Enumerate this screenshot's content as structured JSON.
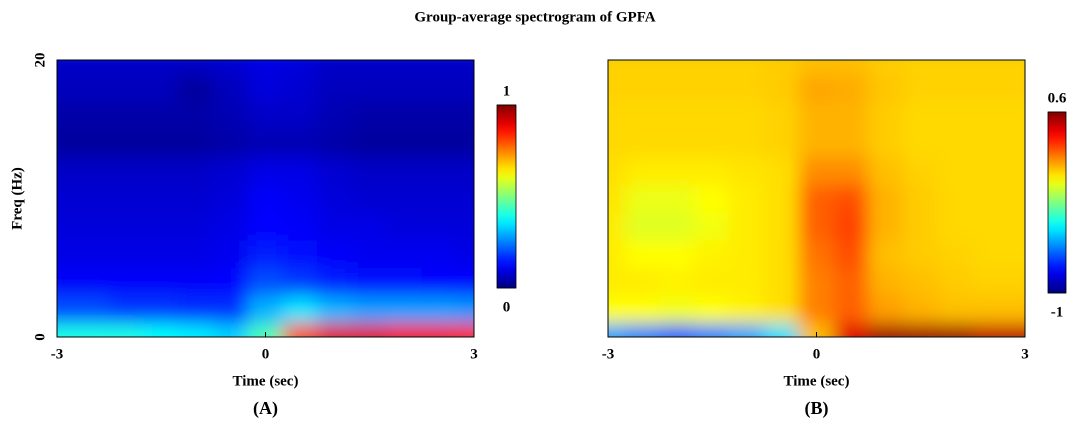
{
  "title": "Group-average spectrogram of GPFA",
  "chart_data": [
    {
      "type": "heatmap",
      "panel_label": "(A)",
      "xlabel": "Time (sec)",
      "ylabel": "Freq (Hz)",
      "x": [
        -3,
        -2.5,
        -2,
        -1.5,
        -1,
        -0.5,
        0,
        0.5,
        1,
        1.5,
        2,
        2.5,
        3
      ],
      "y": [
        0,
        2,
        4,
        6,
        8,
        10,
        12,
        14,
        16,
        18,
        20
      ],
      "values": [
        [
          0.4,
          0.4,
          0.4,
          0.38,
          0.36,
          0.33,
          0.45,
          0.8,
          0.9,
          0.9,
          0.88,
          0.88,
          0.85
        ],
        [
          0.2,
          0.2,
          0.18,
          0.18,
          0.17,
          0.17,
          0.3,
          0.35,
          0.3,
          0.28,
          0.28,
          0.28,
          0.27
        ],
        [
          0.12,
          0.12,
          0.12,
          0.12,
          0.12,
          0.13,
          0.2,
          0.18,
          0.15,
          0.14,
          0.14,
          0.13,
          0.13
        ],
        [
          0.1,
          0.1,
          0.1,
          0.1,
          0.1,
          0.11,
          0.15,
          0.14,
          0.12,
          0.11,
          0.11,
          0.11,
          0.1
        ],
        [
          0.09,
          0.09,
          0.09,
          0.09,
          0.09,
          0.1,
          0.13,
          0.12,
          0.1,
          0.1,
          0.09,
          0.09,
          0.09
        ],
        [
          0.08,
          0.08,
          0.08,
          0.08,
          0.08,
          0.09,
          0.12,
          0.11,
          0.09,
          0.08,
          0.08,
          0.08,
          0.08
        ],
        [
          0.07,
          0.07,
          0.07,
          0.07,
          0.07,
          0.08,
          0.1,
          0.1,
          0.08,
          0.07,
          0.07,
          0.07,
          0.07
        ],
        [
          0.03,
          0.03,
          0.03,
          0.03,
          0.03,
          0.04,
          0.05,
          0.05,
          0.04,
          0.03,
          0.03,
          0.03,
          0.03
        ],
        [
          0.04,
          0.04,
          0.04,
          0.04,
          0.04,
          0.05,
          0.07,
          0.07,
          0.05,
          0.04,
          0.04,
          0.04,
          0.04
        ],
        [
          0.06,
          0.06,
          0.06,
          0.06,
          0.03,
          0.06,
          0.09,
          0.08,
          0.06,
          0.06,
          0.06,
          0.06,
          0.06
        ],
        [
          0.07,
          0.07,
          0.07,
          0.07,
          0.07,
          0.08,
          0.1,
          0.09,
          0.07,
          0.07,
          0.07,
          0.07,
          0.07
        ]
      ],
      "xlim": [
        -3,
        3
      ],
      "ylim": [
        0,
        20
      ],
      "xticks": [
        -3,
        0,
        3
      ],
      "yticks": [
        0,
        20
      ],
      "colormap": "jet",
      "clim": [
        0,
        1
      ],
      "cticks": [
        0,
        1
      ]
    },
    {
      "type": "heatmap",
      "panel_label": "(B)",
      "xlabel": "Time (sec)",
      "x": [
        -3,
        -2.5,
        -2,
        -1.5,
        -1,
        -0.5,
        0,
        0.5,
        1,
        1.5,
        2,
        2.5,
        3
      ],
      "y": [
        0,
        2,
        4,
        6,
        8,
        10,
        12,
        14,
        16,
        18,
        20
      ],
      "values": [
        [
          -0.55,
          -0.6,
          -0.65,
          -0.6,
          -0.55,
          -0.45,
          0.1,
          0.45,
          0.55,
          0.55,
          0.55,
          0.5,
          0.5
        ],
        [
          0.0,
          0.0,
          -0.02,
          0.0,
          0.02,
          0.05,
          0.2,
          0.25,
          0.15,
          0.12,
          0.1,
          0.1,
          0.1
        ],
        [
          0.03,
          0.03,
          0.02,
          0.03,
          0.03,
          0.05,
          0.2,
          0.25,
          0.12,
          0.1,
          0.08,
          0.07,
          0.07
        ],
        [
          0.03,
          0.0,
          0.0,
          0.02,
          0.03,
          0.05,
          0.22,
          0.28,
          0.1,
          0.08,
          0.07,
          0.06,
          0.06
        ],
        [
          0.03,
          -0.05,
          -0.05,
          -0.02,
          0.03,
          0.05,
          0.25,
          0.3,
          0.12,
          0.08,
          0.06,
          0.06,
          0.06
        ],
        [
          0.04,
          -0.03,
          -0.03,
          0.0,
          0.03,
          0.05,
          0.25,
          0.28,
          0.12,
          0.08,
          0.06,
          0.06,
          0.06
        ],
        [
          0.05,
          0.03,
          0.03,
          0.03,
          0.04,
          0.05,
          0.18,
          0.18,
          0.1,
          0.07,
          0.06,
          0.06,
          0.06
        ],
        [
          0.06,
          0.06,
          0.06,
          0.06,
          0.06,
          0.07,
          0.12,
          0.12,
          0.08,
          0.06,
          0.06,
          0.06,
          0.06
        ],
        [
          0.06,
          0.06,
          0.06,
          0.06,
          0.06,
          0.07,
          0.12,
          0.12,
          0.08,
          0.06,
          0.06,
          0.06,
          0.06
        ],
        [
          0.07,
          0.07,
          0.07,
          0.07,
          0.07,
          0.08,
          0.14,
          0.13,
          0.09,
          0.07,
          0.07,
          0.07,
          0.07
        ],
        [
          0.07,
          0.07,
          0.07,
          0.07,
          0.07,
          0.08,
          0.1,
          0.1,
          0.08,
          0.07,
          0.07,
          0.07,
          0.07
        ]
      ],
      "xlim": [
        -3,
        3
      ],
      "ylim": [
        0,
        20
      ],
      "xticks": [
        -3,
        0,
        3
      ],
      "colormap": "jet",
      "clim": [
        -1,
        0.6
      ],
      "cticks": [
        -1,
        0.6
      ]
    }
  ]
}
